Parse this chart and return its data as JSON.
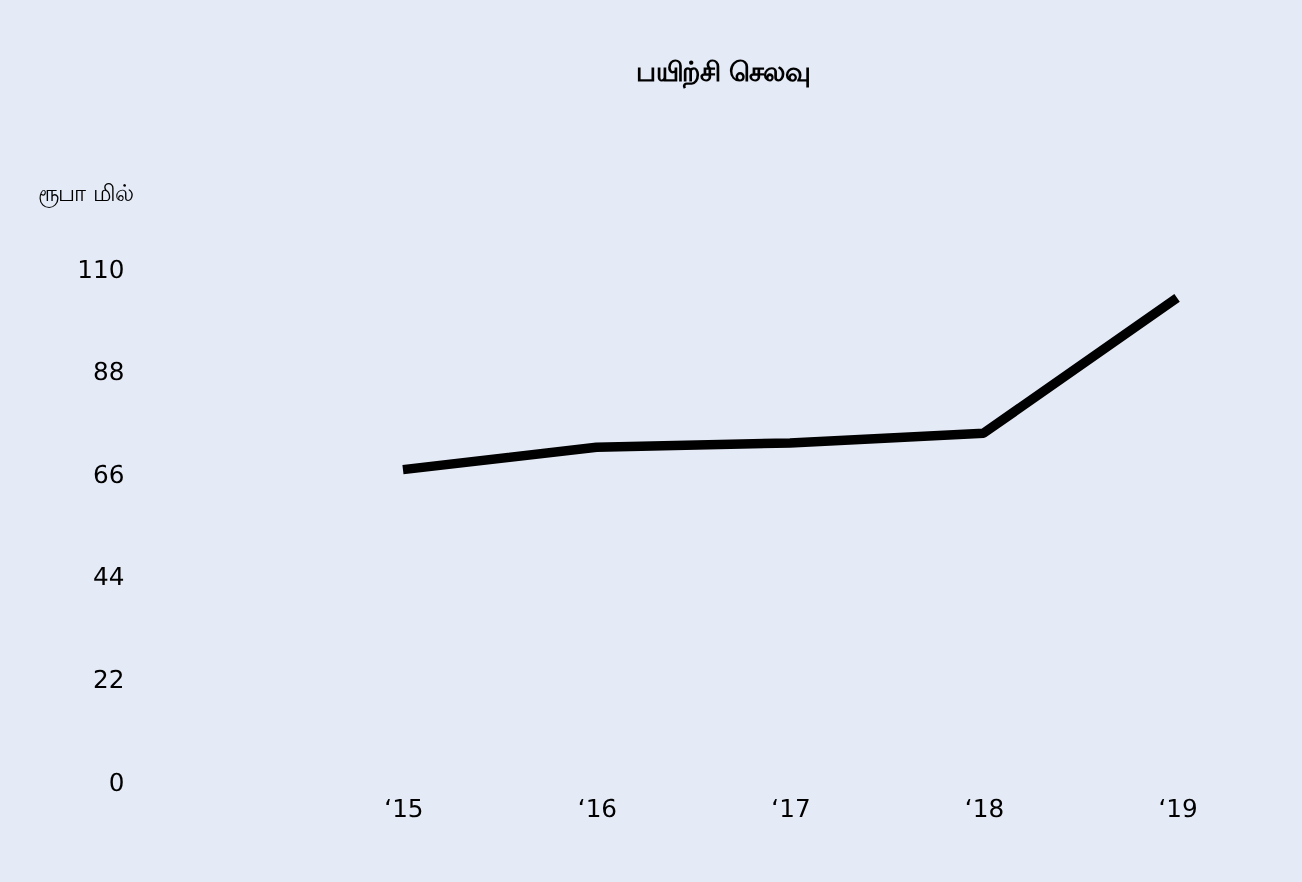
{
  "chart_data": {
    "type": "line",
    "title": "பயிற்சி செலவு",
    "ylabel": "ரூபா மில்",
    "categories": [
      "‘15",
      "‘16",
      "‘17",
      "‘18",
      "‘19"
    ],
    "series": [
      {
        "color": "#000000",
        "values": [
          67,
          71.8,
          72.7,
          74.8,
          103.8
        ]
      }
    ],
    "ylim": [
      0,
      110
    ],
    "yticks": [
      0,
      22,
      44,
      66,
      88,
      110
    ],
    "grid": false,
    "marker": "none",
    "line_style": "solid"
  }
}
